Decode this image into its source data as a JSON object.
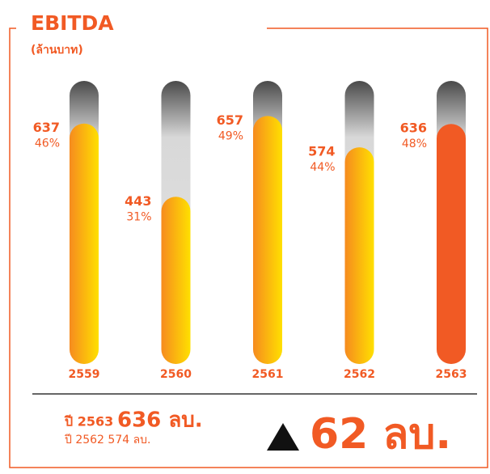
{
  "chart_data": {
    "type": "bar",
    "title": "EBITDA",
    "subtitle": "(ล้านบาท)",
    "categories": [
      "2559",
      "2560",
      "2561",
      "2562",
      "2563"
    ],
    "values": [
      637,
      443,
      657,
      574,
      636
    ],
    "margin_values": [
      46,
      31,
      49,
      44,
      48
    ],
    "margin_labels": [
      "46%",
      "31%",
      "49%",
      "44%",
      "48%"
    ],
    "colors": [
      [
        "#f68b1f",
        "#ffe000"
      ],
      [
        "#f68b1f",
        "#ffe000"
      ],
      [
        "#f68b1f",
        "#ffe000"
      ],
      [
        "#f68b1f",
        "#ffe000"
      ],
      [
        "#f15a24",
        "#f15a24"
      ]
    ],
    "ylim": [
      0,
      750
    ]
  },
  "summary": {
    "current_label": "ปี 2563",
    "current_value": "636 ลบ.",
    "previous": "ปี 2562 574 ลบ.",
    "change": "62 ลบ."
  }
}
